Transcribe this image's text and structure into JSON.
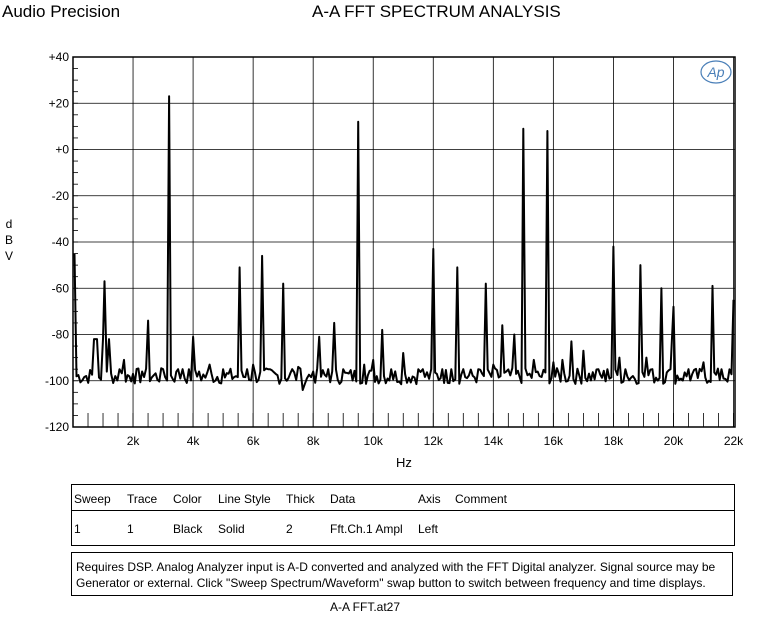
{
  "header": {
    "brand": "Audio Precision",
    "title": "A-A FFT SPECTRUM ANALYSIS"
  },
  "chart_data": {
    "type": "line",
    "title": "A-A FFT SPECTRUM ANALYSIS",
    "xlabel": "Hz",
    "ylabel": "dBV",
    "xlim": [
      0,
      22050
    ],
    "ylim": [
      -120,
      40
    ],
    "x_ticks": [
      2000,
      4000,
      6000,
      8000,
      10000,
      12000,
      14000,
      16000,
      18000,
      20000,
      22000
    ],
    "x_tick_labels": [
      "2k",
      "4k",
      "6k",
      "8k",
      "10k",
      "12k",
      "14k",
      "16k",
      "18k",
      "20k",
      "22k"
    ],
    "y_ticks": [
      40,
      20,
      0,
      -20,
      -40,
      -60,
      -80,
      -100,
      -120
    ],
    "y_tick_labels": [
      "+40",
      "+20",
      "+0",
      "-20",
      "-40",
      "-60",
      "-80",
      "-100",
      "-120"
    ],
    "grid": true,
    "logo": "Ap",
    "series": [
      {
        "color": "#000000",
        "noise_floor": -98,
        "x": [
          50,
          700,
          800,
          1000,
          1050,
          1200,
          1550,
          1700,
          2000,
          2300,
          2500,
          3000,
          3200,
          3500,
          3650,
          4000,
          4200,
          4550,
          5000,
          5550,
          5800,
          6000,
          6300,
          6500,
          7000,
          7300,
          7500,
          7650,
          8000,
          8200,
          8500,
          8700,
          9000,
          9500,
          9700,
          10000,
          10300,
          10600,
          11000,
          11500,
          11650,
          12000,
          12300,
          12600,
          12800,
          13000,
          13500,
          13750,
          14000,
          14300,
          14700,
          15000,
          15350,
          15800,
          16000,
          16300,
          16600,
          17000,
          17500,
          17800,
          18000,
          18200,
          18400,
          18900,
          19100,
          19300,
          19600,
          19900,
          20000,
          20500,
          21000,
          21300,
          21600,
          22000
        ],
        "y": [
          -45,
          -82,
          -82,
          -82,
          -57,
          -82,
          -95,
          -91,
          -97,
          -96,
          -74,
          -95,
          23,
          -95,
          -95,
          -81,
          -96,
          -93,
          -95,
          -51,
          -95,
          -93,
          -46,
          -95,
          -58,
          -95,
          -94,
          -104,
          -96,
          -81,
          -95,
          -75,
          -95,
          12,
          -93,
          -91,
          -78,
          -95,
          -88,
          -95,
          -95,
          -43,
          -95,
          -95,
          -51,
          -95,
          -95,
          -58,
          -93,
          -76,
          -80,
          9,
          -91,
          8,
          -92,
          -91,
          -83,
          -87,
          -95,
          -95,
          -42,
          -90,
          -95,
          -50,
          -90,
          -95,
          -60,
          -95,
          -68,
          -95,
          -92,
          -59,
          -95,
          -65
        ]
      }
    ]
  },
  "legend_table": {
    "headers": [
      "Sweep",
      "Trace",
      "Color",
      "Line Style",
      "Thick",
      "Data",
      "Axis",
      "Comment"
    ],
    "rows": [
      [
        "1",
        "1",
        "Black",
        "Solid",
        "2",
        "Fft.Ch.1 Ampl",
        "Left",
        ""
      ]
    ]
  },
  "notes": "Requires DSP.  Analog Analyzer input is A-D converted and analyzed with the FFT Digital analyzer.  Signal source may be Generator or external.  Click \"Sweep Spectrum/Waveform\" swap button to switch between frequency and time displays.",
  "filename": "A-A FFT.at27"
}
